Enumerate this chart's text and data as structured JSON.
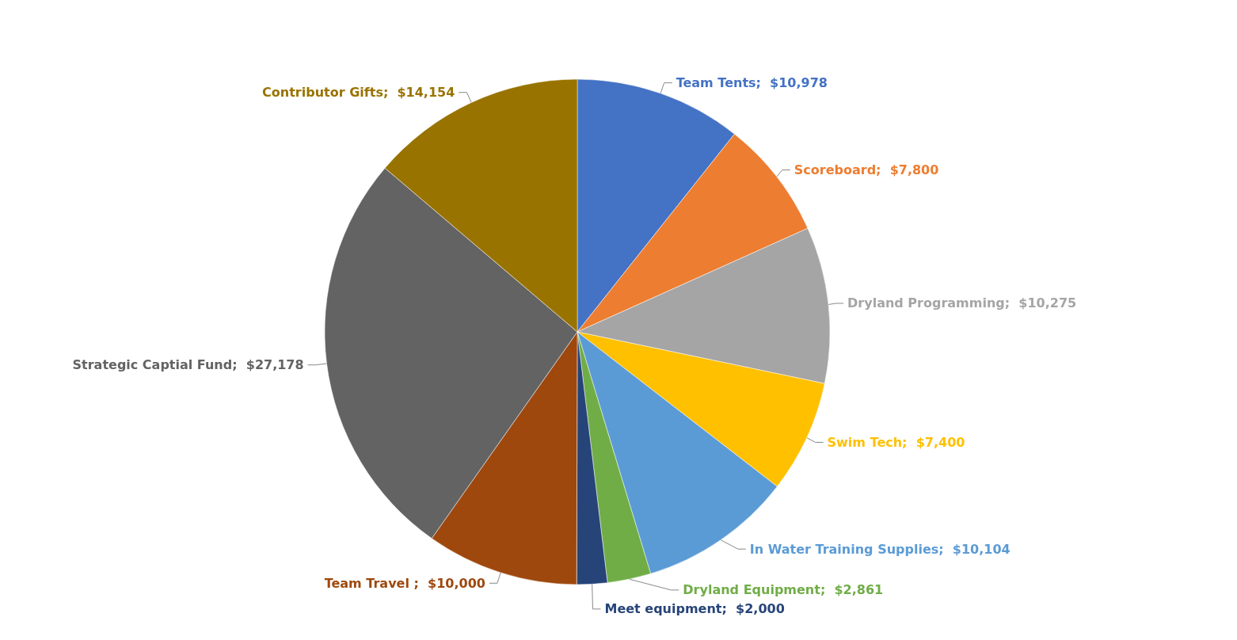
{
  "chart_data": {
    "type": "pie",
    "categories": [
      "Team Tents",
      "Scoreboard",
      "Dryland Programming",
      "Swim Tech",
      "In Water Training Supplies",
      "Dryland Equipment",
      "Meet equipment",
      "Team Travel ",
      "Strategic Captial Fund",
      "Contributor Gifts"
    ],
    "values": [
      10978,
      7800,
      10275,
      7400,
      10104,
      2861,
      2000,
      10000,
      27178,
      14154
    ],
    "value_labels": [
      "$10,978",
      "$7,800",
      "$10,275",
      "$7,400",
      "$10,104",
      "$2,861",
      "$2,000",
      "$10,000",
      "$27,178",
      "$14,154"
    ],
    "colors": [
      "#4472c4",
      "#ed7d31",
      "#a5a5a5",
      "#ffc000",
      "#5b9bd5",
      "#70ad47",
      "#264478",
      "#9e480e",
      "#636363",
      "#997300"
    ],
    "legend": false
  }
}
